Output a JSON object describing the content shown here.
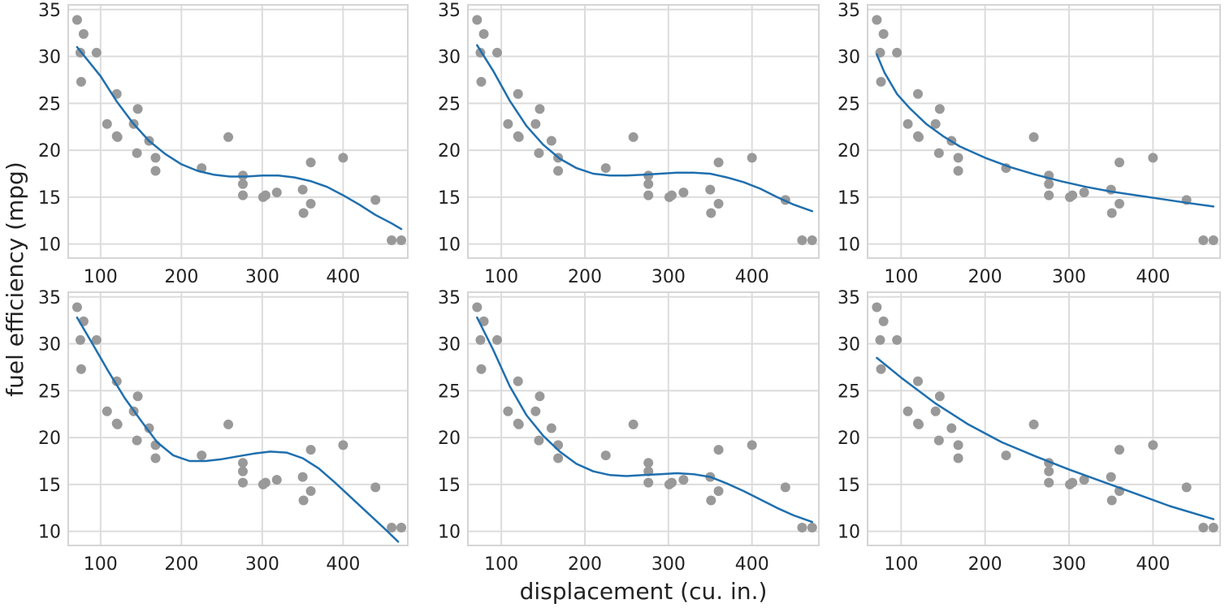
{
  "figure": {
    "ylabel": "fuel efficiency (mpg)",
    "xlabel": "displacement (cu. in.)"
  },
  "style": {
    "point_color": "#999999",
    "line_color": "#1f6fae",
    "grid_color": "#dcdcdc",
    "panel_border_color": "#d5d5d5"
  },
  "chart_data": [
    {
      "type": "scatter",
      "xlim": [
        60,
        480
      ],
      "ylim": [
        8.5,
        35.5
      ],
      "xticks": [
        100,
        200,
        300,
        400
      ],
      "yticks": [
        10,
        15,
        20,
        25,
        30,
        35
      ],
      "grid": true,
      "points": [
        [
          71,
          33.9
        ],
        [
          75,
          30.4
        ],
        [
          79,
          32.4
        ],
        [
          76,
          27.3
        ],
        [
          95,
          30.4
        ],
        [
          108,
          22.8
        ],
        [
          120,
          26
        ],
        [
          121,
          21.4
        ],
        [
          120,
          21.5
        ],
        [
          141,
          22.8
        ],
        [
          146,
          24.4
        ],
        [
          145,
          19.7
        ],
        [
          160,
          21
        ],
        [
          168,
          19.2
        ],
        [
          168,
          17.8
        ],
        [
          225,
          18.1
        ],
        [
          258,
          21.4
        ],
        [
          276,
          17.3
        ],
        [
          276,
          16.4
        ],
        [
          276,
          15.2
        ],
        [
          301,
          15
        ],
        [
          304,
          15.2
        ],
        [
          318,
          15.5
        ],
        [
          350,
          15.8
        ],
        [
          351,
          13.3
        ],
        [
          360,
          18.7
        ],
        [
          360,
          14.3
        ],
        [
          400,
          19.2
        ],
        [
          440,
          14.7
        ],
        [
          460,
          10.4
        ],
        [
          472,
          10.4
        ]
      ],
      "fit": [
        [
          71,
          31
        ],
        [
          100,
          27.9
        ],
        [
          120,
          25.2
        ],
        [
          140,
          22.9
        ],
        [
          160,
          21
        ],
        [
          180,
          19.6
        ],
        [
          200,
          18.5
        ],
        [
          220,
          17.8
        ],
        [
          240,
          17.4
        ],
        [
          260,
          17.2
        ],
        [
          280,
          17.2
        ],
        [
          300,
          17.3
        ],
        [
          320,
          17.3
        ],
        [
          340,
          17.1
        ],
        [
          360,
          16.7
        ],
        [
          380,
          16.1
        ],
        [
          400,
          15.2
        ],
        [
          420,
          14.2
        ],
        [
          440,
          13.1
        ],
        [
          460,
          12.2
        ],
        [
          472,
          11.6
        ]
      ]
    },
    {
      "type": "scatter",
      "xlim": [
        60,
        480
      ],
      "ylim": [
        8.5,
        35.5
      ],
      "xticks": [
        100,
        200,
        300,
        400
      ],
      "yticks": [
        10,
        15,
        20,
        25,
        30,
        35
      ],
      "grid": true,
      "points": [
        [
          71,
          33.9
        ],
        [
          75,
          30.4
        ],
        [
          79,
          32.4
        ],
        [
          76,
          27.3
        ],
        [
          95,
          30.4
        ],
        [
          108,
          22.8
        ],
        [
          120,
          26
        ],
        [
          121,
          21.4
        ],
        [
          120,
          21.5
        ],
        [
          141,
          22.8
        ],
        [
          146,
          24.4
        ],
        [
          145,
          19.7
        ],
        [
          160,
          21
        ],
        [
          168,
          19.2
        ],
        [
          168,
          17.8
        ],
        [
          225,
          18.1
        ],
        [
          258,
          21.4
        ],
        [
          276,
          17.3
        ],
        [
          276,
          16.4
        ],
        [
          276,
          15.2
        ],
        [
          301,
          15
        ],
        [
          304,
          15.2
        ],
        [
          318,
          15.5
        ],
        [
          350,
          15.8
        ],
        [
          351,
          13.3
        ],
        [
          360,
          18.7
        ],
        [
          360,
          14.3
        ],
        [
          400,
          19.2
        ],
        [
          440,
          14.7
        ],
        [
          460,
          10.4
        ],
        [
          472,
          10.4
        ]
      ],
      "fit": [
        [
          71,
          31.2
        ],
        [
          90,
          28.5
        ],
        [
          110,
          25.3
        ],
        [
          130,
          22.6
        ],
        [
          150,
          20.6
        ],
        [
          170,
          19.1
        ],
        [
          190,
          18.1
        ],
        [
          210,
          17.5
        ],
        [
          230,
          17.3
        ],
        [
          250,
          17.3
        ],
        [
          270,
          17.4
        ],
        [
          290,
          17.5
        ],
        [
          310,
          17.6
        ],
        [
          330,
          17.6
        ],
        [
          350,
          17.5
        ],
        [
          370,
          17.1
        ],
        [
          390,
          16.6
        ],
        [
          410,
          15.9
        ],
        [
          430,
          15
        ],
        [
          450,
          14.2
        ],
        [
          472,
          13.5
        ]
      ]
    },
    {
      "type": "scatter",
      "xlim": [
        60,
        480
      ],
      "ylim": [
        8.5,
        35.5
      ],
      "xticks": [
        100,
        200,
        300,
        400
      ],
      "yticks": [
        10,
        15,
        20,
        25,
        30,
        35
      ],
      "grid": true,
      "points": [
        [
          71,
          33.9
        ],
        [
          75,
          30.4
        ],
        [
          79,
          32.4
        ],
        [
          76,
          27.3
        ],
        [
          95,
          30.4
        ],
        [
          108,
          22.8
        ],
        [
          120,
          26
        ],
        [
          121,
          21.4
        ],
        [
          120,
          21.5
        ],
        [
          141,
          22.8
        ],
        [
          146,
          24.4
        ],
        [
          145,
          19.7
        ],
        [
          160,
          21
        ],
        [
          168,
          19.2
        ],
        [
          168,
          17.8
        ],
        [
          225,
          18.1
        ],
        [
          258,
          21.4
        ],
        [
          276,
          17.3
        ],
        [
          276,
          16.4
        ],
        [
          276,
          15.2
        ],
        [
          301,
          15
        ],
        [
          304,
          15.2
        ],
        [
          318,
          15.5
        ],
        [
          350,
          15.8
        ],
        [
          351,
          13.3
        ],
        [
          360,
          18.7
        ],
        [
          360,
          14.3
        ],
        [
          400,
          19.2
        ],
        [
          440,
          14.7
        ],
        [
          460,
          10.4
        ],
        [
          472,
          10.4
        ]
      ],
      "fit": [
        [
          71,
          30.2
        ],
        [
          80,
          28.3
        ],
        [
          95,
          26
        ],
        [
          110,
          24.5
        ],
        [
          130,
          22.8
        ],
        [
          150,
          21.5
        ],
        [
          170,
          20.4
        ],
        [
          200,
          19.2
        ],
        [
          230,
          18.2
        ],
        [
          260,
          17.4
        ],
        [
          290,
          16.7
        ],
        [
          320,
          16.1
        ],
        [
          350,
          15.6
        ],
        [
          380,
          15.2
        ],
        [
          410,
          14.8
        ],
        [
          440,
          14.4
        ],
        [
          472,
          14
        ]
      ]
    },
    {
      "type": "scatter",
      "xlim": [
        60,
        480
      ],
      "ylim": [
        8.5,
        35.5
      ],
      "xticks": [
        100,
        200,
        300,
        400
      ],
      "yticks": [
        10,
        15,
        20,
        25,
        30,
        35
      ],
      "grid": true,
      "points": [
        [
          71,
          33.9
        ],
        [
          75,
          30.4
        ],
        [
          79,
          32.4
        ],
        [
          76,
          27.3
        ],
        [
          95,
          30.4
        ],
        [
          108,
          22.8
        ],
        [
          120,
          26
        ],
        [
          121,
          21.4
        ],
        [
          120,
          21.5
        ],
        [
          141,
          22.8
        ],
        [
          146,
          24.4
        ],
        [
          145,
          19.7
        ],
        [
          160,
          21
        ],
        [
          168,
          19.2
        ],
        [
          168,
          17.8
        ],
        [
          225,
          18.1
        ],
        [
          258,
          21.4
        ],
        [
          276,
          17.3
        ],
        [
          276,
          16.4
        ],
        [
          276,
          15.2
        ],
        [
          301,
          15
        ],
        [
          304,
          15.2
        ],
        [
          318,
          15.5
        ],
        [
          350,
          15.8
        ],
        [
          351,
          13.3
        ],
        [
          360,
          18.7
        ],
        [
          360,
          14.3
        ],
        [
          400,
          19.2
        ],
        [
          440,
          14.7
        ],
        [
          460,
          10.4
        ],
        [
          472,
          10.4
        ]
      ],
      "fit": [
        [
          71,
          32.8
        ],
        [
          90,
          30
        ],
        [
          110,
          27
        ],
        [
          130,
          24.2
        ],
        [
          150,
          21.8
        ],
        [
          170,
          19.5
        ],
        [
          190,
          18.1
        ],
        [
          210,
          17.5
        ],
        [
          230,
          17.5
        ],
        [
          250,
          17.7
        ],
        [
          270,
          18
        ],
        [
          290,
          18.3
        ],
        [
          310,
          18.5
        ],
        [
          330,
          18.4
        ],
        [
          350,
          17.8
        ],
        [
          370,
          16.7
        ],
        [
          390,
          15.2
        ],
        [
          410,
          13.6
        ],
        [
          430,
          12
        ],
        [
          450,
          10.4
        ],
        [
          468,
          8.9
        ]
      ]
    },
    {
      "type": "scatter",
      "xlim": [
        60,
        480
      ],
      "ylim": [
        8.5,
        35.5
      ],
      "xticks": [
        100,
        200,
        300,
        400
      ],
      "yticks": [
        10,
        15,
        20,
        25,
        30,
        35
      ],
      "grid": true,
      "points": [
        [
          71,
          33.9
        ],
        [
          75,
          30.4
        ],
        [
          79,
          32.4
        ],
        [
          76,
          27.3
        ],
        [
          95,
          30.4
        ],
        [
          108,
          22.8
        ],
        [
          120,
          26
        ],
        [
          121,
          21.4
        ],
        [
          120,
          21.5
        ],
        [
          141,
          22.8
        ],
        [
          146,
          24.4
        ],
        [
          145,
          19.7
        ],
        [
          160,
          21
        ],
        [
          168,
          19.2
        ],
        [
          168,
          17.8
        ],
        [
          225,
          18.1
        ],
        [
          258,
          21.4
        ],
        [
          276,
          17.3
        ],
        [
          276,
          16.4
        ],
        [
          276,
          15.2
        ],
        [
          301,
          15
        ],
        [
          304,
          15.2
        ],
        [
          318,
          15.5
        ],
        [
          350,
          15.8
        ],
        [
          351,
          13.3
        ],
        [
          360,
          18.7
        ],
        [
          360,
          14.3
        ],
        [
          400,
          19.2
        ],
        [
          440,
          14.7
        ],
        [
          460,
          10.4
        ],
        [
          472,
          10.4
        ]
      ],
      "fit": [
        [
          71,
          32.8
        ],
        [
          90,
          29.4
        ],
        [
          110,
          25.5
        ],
        [
          130,
          22.4
        ],
        [
          150,
          20.2
        ],
        [
          170,
          18.5
        ],
        [
          190,
          17.2
        ],
        [
          210,
          16.4
        ],
        [
          230,
          16
        ],
        [
          250,
          15.9
        ],
        [
          270,
          16
        ],
        [
          290,
          16.1
        ],
        [
          310,
          16.2
        ],
        [
          330,
          16.1
        ],
        [
          350,
          15.8
        ],
        [
          370,
          15.1
        ],
        [
          390,
          14.3
        ],
        [
          410,
          13.4
        ],
        [
          430,
          12.5
        ],
        [
          450,
          11.7
        ],
        [
          472,
          11
        ]
      ]
    },
    {
      "type": "scatter",
      "xlim": [
        60,
        480
      ],
      "ylim": [
        8.5,
        35.5
      ],
      "xticks": [
        100,
        200,
        300,
        400
      ],
      "yticks": [
        10,
        15,
        20,
        25,
        30,
        35
      ],
      "grid": true,
      "points": [
        [
          71,
          33.9
        ],
        [
          75,
          30.4
        ],
        [
          79,
          32.4
        ],
        [
          76,
          27.3
        ],
        [
          95,
          30.4
        ],
        [
          108,
          22.8
        ],
        [
          120,
          26
        ],
        [
          121,
          21.4
        ],
        [
          120,
          21.5
        ],
        [
          141,
          22.8
        ],
        [
          146,
          24.4
        ],
        [
          145,
          19.7
        ],
        [
          160,
          21
        ],
        [
          168,
          19.2
        ],
        [
          168,
          17.8
        ],
        [
          225,
          18.1
        ],
        [
          258,
          21.4
        ],
        [
          276,
          17.3
        ],
        [
          276,
          16.4
        ],
        [
          276,
          15.2
        ],
        [
          301,
          15
        ],
        [
          304,
          15.2
        ],
        [
          318,
          15.5
        ],
        [
          350,
          15.8
        ],
        [
          351,
          13.3
        ],
        [
          360,
          18.7
        ],
        [
          360,
          14.3
        ],
        [
          400,
          19.2
        ],
        [
          440,
          14.7
        ],
        [
          460,
          10.4
        ],
        [
          472,
          10.4
        ]
      ],
      "fit": [
        [
          71,
          28.5
        ],
        [
          100,
          26.4
        ],
        [
          140,
          23.7
        ],
        [
          180,
          21.4
        ],
        [
          220,
          19.5
        ],
        [
          260,
          18
        ],
        [
          300,
          16.6
        ],
        [
          340,
          15.3
        ],
        [
          380,
          14
        ],
        [
          420,
          12.7
        ],
        [
          472,
          11.3
        ]
      ]
    }
  ]
}
